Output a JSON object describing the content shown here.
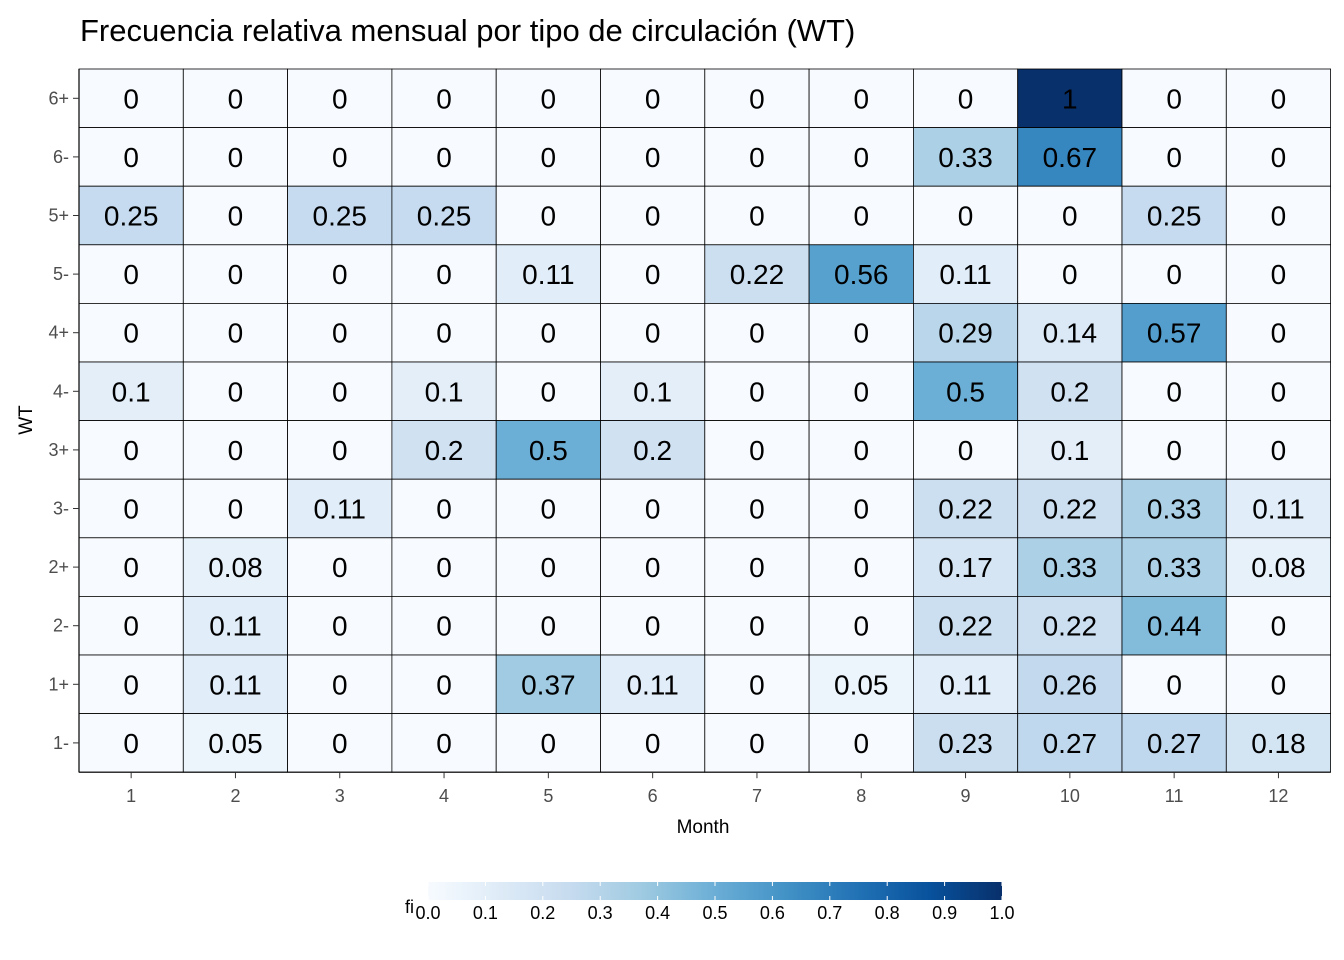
{
  "chart_data": {
    "type": "heatmap",
    "title": "Frecuencia relativa mensual por tipo de circulación (WT)",
    "xlabel": "Month",
    "ylabel": "WT",
    "x": [
      "1",
      "2",
      "3",
      "4",
      "5",
      "6",
      "7",
      "8",
      "9",
      "10",
      "11",
      "12"
    ],
    "y": [
      "6+",
      "6-",
      "5+",
      "5-",
      "4+",
      "4-",
      "3+",
      "3-",
      "2+",
      "2-",
      "1+",
      "1-"
    ],
    "values": [
      [
        0,
        0,
        0,
        0,
        0,
        0,
        0,
        0,
        0,
        1,
        0,
        0
      ],
      [
        0,
        0,
        0,
        0,
        0,
        0,
        0,
        0,
        0.33,
        0.67,
        0,
        0
      ],
      [
        0.25,
        0,
        0.25,
        0.25,
        0,
        0,
        0,
        0,
        0,
        0,
        0.25,
        0
      ],
      [
        0,
        0,
        0,
        0,
        0.11,
        0,
        0.22,
        0.56,
        0.11,
        0,
        0,
        0
      ],
      [
        0,
        0,
        0,
        0,
        0,
        0,
        0,
        0,
        0.29,
        0.14,
        0.57,
        0
      ],
      [
        0.1,
        0,
        0,
        0.1,
        0,
        0.1,
        0,
        0,
        0.5,
        0.2,
        0,
        0
      ],
      [
        0,
        0,
        0,
        0.2,
        0.5,
        0.2,
        0,
        0,
        0,
        0.1,
        0,
        0
      ],
      [
        0,
        0,
        0.11,
        0,
        0,
        0,
        0,
        0,
        0.22,
        0.22,
        0.33,
        0.11
      ],
      [
        0,
        0.08,
        0,
        0,
        0,
        0,
        0,
        0,
        0.17,
        0.33,
        0.33,
        0.08
      ],
      [
        0,
        0.11,
        0,
        0,
        0,
        0,
        0,
        0,
        0.22,
        0.22,
        0.44,
        0
      ],
      [
        0,
        0.11,
        0,
        0,
        0.37,
        0.11,
        0,
        0.05,
        0.11,
        0.26,
        0,
        0
      ],
      [
        0,
        0.05,
        0,
        0,
        0,
        0,
        0,
        0,
        0.23,
        0.27,
        0.27,
        0.18
      ]
    ],
    "legend": {
      "title": "fi",
      "range": [
        0,
        1
      ],
      "ticks": [
        "0.0",
        "0.1",
        "0.2",
        "0.3",
        "0.4",
        "0.5",
        "0.6",
        "0.7",
        "0.8",
        "0.9",
        "1.0"
      ],
      "placement": "bottom",
      "colors": [
        "#f7fbff",
        "#deebf7",
        "#c6dbef",
        "#9ecae1",
        "#6baed6",
        "#4292c6",
        "#2171b5",
        "#08519c",
        "#08306b"
      ]
    },
    "grid": false
  }
}
